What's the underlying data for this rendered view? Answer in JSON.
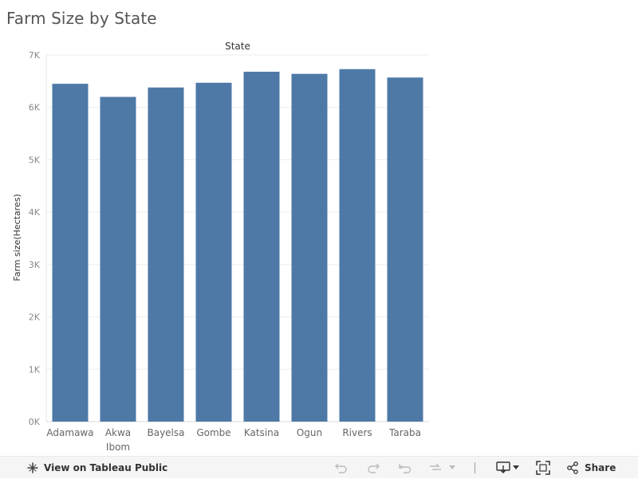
{
  "title": "Farm Size by State",
  "chart_data": {
    "type": "bar",
    "column_header": "State",
    "ylabel": "Farm size(Hectares)",
    "categories": [
      "Adamawa",
      "Akwa Ibom",
      "Bayelsa",
      "Gombe",
      "Katsina",
      "Ogun",
      "Rivers",
      "Taraba"
    ],
    "category_label_lines": [
      [
        "Adamawa"
      ],
      [
        "Akwa",
        "Ibom"
      ],
      [
        "Bayelsa"
      ],
      [
        "Gombe"
      ],
      [
        "Katsina"
      ],
      [
        "Ogun"
      ],
      [
        "Rivers"
      ],
      [
        "Taraba"
      ]
    ],
    "values": [
      6450,
      6200,
      6380,
      6470,
      6680,
      6640,
      6730,
      6570
    ],
    "ylim": [
      0,
      7000
    ],
    "yticks": [
      0,
      1000,
      2000,
      3000,
      4000,
      5000,
      6000,
      7000
    ],
    "ytick_labels": [
      "0K",
      "1K",
      "2K",
      "3K",
      "4K",
      "5K",
      "6K",
      "7K"
    ],
    "grid": true,
    "bar_color": "#4e79a7"
  },
  "toolbar": {
    "view_label": "View on Tableau Public",
    "share_label": "Share"
  }
}
